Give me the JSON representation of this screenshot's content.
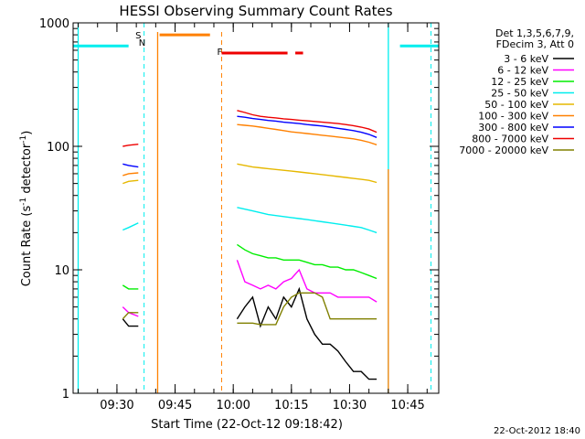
{
  "chart_data": {
    "type": "line",
    "title": "HESSI Observing Summary Count Rates",
    "xlabel": "Start Time (22-Oct-12 09:18:42)",
    "ylabel": "Count Rate (s",
    "ylabel_sup1": "-1",
    "ylabel_mid": " detector",
    "ylabel_sup2": "-1",
    "ylabel_end": ")",
    "y_scale": "log",
    "ylim": [
      1,
      1000
    ],
    "xlim": [
      "09:18:42",
      "10:53:00"
    ],
    "x_ticks": [
      "09:30",
      "09:45",
      "10:00",
      "10:15",
      "10:30",
      "10:45"
    ],
    "y_ticks": [
      "1",
      "10",
      "100",
      "1000"
    ],
    "legend_header": [
      "Det 1,3,5,6,7,9,",
      "FDecim 3, Att 0"
    ],
    "legend_position": "right",
    "footer_timestamp": "22-Oct-2012 18:40",
    "annotations": {
      "saa": "S",
      "night": "N",
      "flare": "F"
    },
    "series": [
      {
        "name": "3 - 6 keV",
        "color": "#000000",
        "points": [
          [
            "09:31:30",
            4
          ],
          [
            "09:33:00",
            3.5
          ],
          [
            "09:35:30",
            3.5
          ],
          [
            "09:35:30",
            null
          ],
          [
            "10:01:00",
            4
          ],
          [
            "10:03:00",
            5
          ],
          [
            "10:05:00",
            6
          ],
          [
            "10:07:00",
            3.5
          ],
          [
            "10:09:00",
            5
          ],
          [
            "10:11:00",
            4
          ],
          [
            "10:13:00",
            6
          ],
          [
            "10:15:00",
            5
          ],
          [
            "10:17:00",
            7
          ],
          [
            "10:19:00",
            4
          ],
          [
            "10:21:00",
            3
          ],
          [
            "10:23:00",
            2.5
          ],
          [
            "10:25:00",
            2.5
          ],
          [
            "10:27:00",
            2.2
          ],
          [
            "10:29:00",
            1.8
          ],
          [
            "10:31:00",
            1.5
          ],
          [
            "10:33:00",
            1.5
          ],
          [
            "10:35:00",
            1.3
          ],
          [
            "10:37:00",
            1.3
          ]
        ]
      },
      {
        "name": "6 - 12 keV",
        "color": "#ff00ff",
        "points": [
          [
            "09:31:30",
            5
          ],
          [
            "09:33:00",
            4.5
          ],
          [
            "09:35:30",
            4.2
          ],
          [
            "09:35:30",
            null
          ],
          [
            "10:01:00",
            12
          ],
          [
            "10:03:00",
            8
          ],
          [
            "10:05:00",
            7.5
          ],
          [
            "10:07:00",
            7
          ],
          [
            "10:09:00",
            7.5
          ],
          [
            "10:11:00",
            7
          ],
          [
            "10:13:00",
            8
          ],
          [
            "10:15:00",
            8.5
          ],
          [
            "10:17:00",
            10
          ],
          [
            "10:19:00",
            7
          ],
          [
            "10:21:00",
            6.5
          ],
          [
            "10:23:00",
            6.5
          ],
          [
            "10:25:00",
            6.5
          ],
          [
            "10:27:00",
            6
          ],
          [
            "10:29:00",
            6
          ],
          [
            "10:31:00",
            6
          ],
          [
            "10:33:00",
            6
          ],
          [
            "10:35:00",
            6
          ],
          [
            "10:37:00",
            5.5
          ]
        ]
      },
      {
        "name": "12 - 25 keV",
        "color": "#00ee00",
        "points": [
          [
            "09:31:30",
            7.5
          ],
          [
            "09:33:00",
            7
          ],
          [
            "09:35:30",
            7
          ],
          [
            "09:35:30",
            null
          ],
          [
            "10:01:00",
            16
          ],
          [
            "10:03:00",
            14.5
          ],
          [
            "10:05:00",
            13.5
          ],
          [
            "10:07:00",
            13
          ],
          [
            "10:09:00",
            12.5
          ],
          [
            "10:11:00",
            12.5
          ],
          [
            "10:13:00",
            12
          ],
          [
            "10:15:00",
            12
          ],
          [
            "10:17:00",
            12
          ],
          [
            "10:19:00",
            11.5
          ],
          [
            "10:21:00",
            11
          ],
          [
            "10:23:00",
            11
          ],
          [
            "10:25:00",
            10.5
          ],
          [
            "10:27:00",
            10.5
          ],
          [
            "10:29:00",
            10
          ],
          [
            "10:31:00",
            10
          ],
          [
            "10:33:00",
            9.5
          ],
          [
            "10:35:00",
            9
          ],
          [
            "10:37:00",
            8.5
          ]
        ]
      },
      {
        "name": "25 - 50 keV",
        "color": "#00eeee",
        "points": [
          [
            "09:31:30",
            21
          ],
          [
            "09:33:00",
            22
          ],
          [
            "09:35:30",
            24
          ],
          [
            "09:35:30",
            null
          ],
          [
            "10:01:00",
            32
          ],
          [
            "10:03:00",
            31
          ],
          [
            "10:05:00",
            30
          ],
          [
            "10:07:00",
            29
          ],
          [
            "10:09:00",
            28
          ],
          [
            "10:11:00",
            27.5
          ],
          [
            "10:13:00",
            27
          ],
          [
            "10:15:00",
            26.5
          ],
          [
            "10:17:00",
            26
          ],
          [
            "10:19:00",
            25.5
          ],
          [
            "10:21:00",
            25
          ],
          [
            "10:23:00",
            24.5
          ],
          [
            "10:25:00",
            24
          ],
          [
            "10:27:00",
            23.5
          ],
          [
            "10:29:00",
            23
          ],
          [
            "10:31:00",
            22.5
          ],
          [
            "10:33:00",
            22
          ],
          [
            "10:35:00",
            21
          ],
          [
            "10:37:00",
            20
          ]
        ]
      },
      {
        "name": "50 - 100 keV",
        "color": "#e6b800",
        "points": [
          [
            "09:31:30",
            50
          ],
          [
            "09:33:00",
            52
          ],
          [
            "09:35:30",
            53
          ],
          [
            "09:35:30",
            null
          ],
          [
            "10:01:00",
            72
          ],
          [
            "10:03:00",
            70
          ],
          [
            "10:05:00",
            68
          ],
          [
            "10:07:00",
            67
          ],
          [
            "10:09:00",
            66
          ],
          [
            "10:11:00",
            65
          ],
          [
            "10:13:00",
            64
          ],
          [
            "10:15:00",
            63
          ],
          [
            "10:17:00",
            62
          ],
          [
            "10:19:00",
            61
          ],
          [
            "10:21:00",
            60
          ],
          [
            "10:23:00",
            59
          ],
          [
            "10:25:00",
            58
          ],
          [
            "10:27:00",
            57
          ],
          [
            "10:29:00",
            56
          ],
          [
            "10:31:00",
            55
          ],
          [
            "10:33:00",
            54
          ],
          [
            "10:35:00",
            53
          ],
          [
            "10:37:00",
            51
          ]
        ]
      },
      {
        "name": "100 - 300 keV",
        "color": "#ff8000",
        "points": [
          [
            "09:31:30",
            58
          ],
          [
            "09:33:00",
            60
          ],
          [
            "09:35:30",
            61
          ],
          [
            "09:35:30",
            null
          ],
          [
            "10:01:00",
            150
          ],
          [
            "10:03:00",
            148
          ],
          [
            "10:05:00",
            146
          ],
          [
            "10:07:00",
            143
          ],
          [
            "10:09:00",
            140
          ],
          [
            "10:11:00",
            137
          ],
          [
            "10:13:00",
            134
          ],
          [
            "10:15:00",
            131
          ],
          [
            "10:17:00",
            129
          ],
          [
            "10:19:00",
            127
          ],
          [
            "10:21:00",
            125
          ],
          [
            "10:23:00",
            123
          ],
          [
            "10:25:00",
            121
          ],
          [
            "10:27:00",
            119
          ],
          [
            "10:29:00",
            117
          ],
          [
            "10:31:00",
            115
          ],
          [
            "10:33:00",
            112
          ],
          [
            "10:35:00",
            108
          ],
          [
            "10:37:00",
            103
          ]
        ]
      },
      {
        "name": "300 - 800 keV",
        "color": "#0000ff",
        "points": [
          [
            "09:31:30",
            72
          ],
          [
            "09:33:00",
            70
          ],
          [
            "09:35:30",
            68
          ],
          [
            "09:35:30",
            null
          ],
          [
            "10:01:00",
            175
          ],
          [
            "10:03:00",
            172
          ],
          [
            "10:05:00",
            168
          ],
          [
            "10:07:00",
            165
          ],
          [
            "10:09:00",
            162
          ],
          [
            "10:11:00",
            160
          ],
          [
            "10:13:00",
            157
          ],
          [
            "10:15:00",
            155
          ],
          [
            "10:17:00",
            153
          ],
          [
            "10:19:00",
            150
          ],
          [
            "10:21:00",
            148
          ],
          [
            "10:23:00",
            146
          ],
          [
            "10:25:00",
            143
          ],
          [
            "10:27:00",
            140
          ],
          [
            "10:29:00",
            137
          ],
          [
            "10:31:00",
            134
          ],
          [
            "10:33:00",
            130
          ],
          [
            "10:35:00",
            125
          ],
          [
            "10:37:00",
            118
          ]
        ]
      },
      {
        "name": "800 - 7000 keV",
        "color": "#ee0000",
        "points": [
          [
            "09:31:30",
            100
          ],
          [
            "09:33:00",
            102
          ],
          [
            "09:35:30",
            104
          ],
          [
            "09:35:30",
            null
          ],
          [
            "10:01:00",
            195
          ],
          [
            "10:03:00",
            188
          ],
          [
            "10:05:00",
            180
          ],
          [
            "10:07:00",
            175
          ],
          [
            "10:09:00",
            172
          ],
          [
            "10:11:00",
            170
          ],
          [
            "10:13:00",
            167
          ],
          [
            "10:15:00",
            165
          ],
          [
            "10:17:00",
            163
          ],
          [
            "10:19:00",
            161
          ],
          [
            "10:21:00",
            159
          ],
          [
            "10:23:00",
            157
          ],
          [
            "10:25:00",
            155
          ],
          [
            "10:27:00",
            153
          ],
          [
            "10:29:00",
            150
          ],
          [
            "10:31:00",
            147
          ],
          [
            "10:33:00",
            143
          ],
          [
            "10:35:00",
            138
          ],
          [
            "10:37:00",
            130
          ]
        ]
      },
      {
        "name": "7000 - 20000 keV",
        "color": "#808000",
        "points": [
          [
            "09:31:30",
            4
          ],
          [
            "09:33:00",
            4.5
          ],
          [
            "09:35:30",
            4.5
          ],
          [
            "09:35:30",
            null
          ],
          [
            "10:01:00",
            3.7
          ],
          [
            "10:03:00",
            3.7
          ],
          [
            "10:05:00",
            3.7
          ],
          [
            "10:07:00",
            3.6
          ],
          [
            "10:09:00",
            3.6
          ],
          [
            "10:11:00",
            3.6
          ],
          [
            "10:13:00",
            5
          ],
          [
            "10:15:00",
            6
          ],
          [
            "10:17:00",
            6.5
          ],
          [
            "10:19:00",
            6.5
          ],
          [
            "10:21:00",
            6.5
          ],
          [
            "10:23:00",
            6
          ],
          [
            "10:25:00",
            4
          ],
          [
            "10:27:00",
            4
          ],
          [
            "10:29:00",
            4
          ],
          [
            "10:31:00",
            4
          ],
          [
            "10:33:00",
            4
          ],
          [
            "10:35:00",
            4
          ],
          [
            "10:37:00",
            4
          ]
        ]
      }
    ],
    "markers": {
      "saa_bars": [
        [
          "09:18:42",
          "09:33:00"
        ],
        [
          "10:43:00",
          "10:53:00"
        ]
      ],
      "saa_level": 650,
      "night_bar": [
        "09:41:00",
        "09:54:00"
      ],
      "night_level": 800,
      "flare_bar": [
        "09:57:00",
        "10:14:00"
      ],
      "flare_bar2": [
        "10:16:00",
        "10:18:00"
      ],
      "flare_level": 570,
      "night_lines_solid": [
        "09:40:30",
        "10:40:00"
      ],
      "saa_lines_dashed": [
        "09:37:00",
        "10:51:00"
      ],
      "flare_line_dashed": "09:57:00",
      "night_line_solid_cyan": [
        "09:20:00",
        "10:40:00"
      ]
    }
  }
}
